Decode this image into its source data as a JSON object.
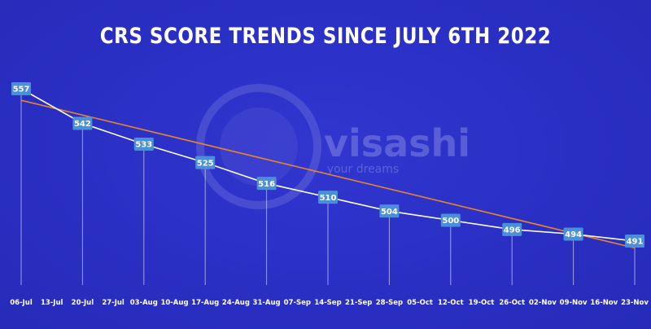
{
  "chart_data": {
    "type": "line",
    "title": "CRS SCORE TRENDS SINCE JULY 6TH 2022",
    "xlabel": "",
    "ylabel": "",
    "categories": [
      "06-Jul",
      "13-Jul",
      "20-Jul",
      "27-Jul",
      "03-Aug",
      "10-Aug",
      "17-Aug",
      "24-Aug",
      "31-Aug",
      "07-Sep",
      "14-Sep",
      "21-Sep",
      "28-Sep",
      "05-Oct",
      "12-Oct",
      "19-Oct",
      "26-Oct",
      "02-Nov",
      "09-Nov",
      "16-Nov",
      "23-Nov"
    ],
    "series": [
      {
        "values": [
          557,
          null,
          542,
          null,
          533,
          null,
          525,
          null,
          516,
          null,
          510,
          null,
          504,
          null,
          500,
          null,
          496,
          null,
          494,
          null,
          491
        ],
        "color": "#ffffff",
        "data_labels": true
      }
    ],
    "trendline": {
      "kind": "linear",
      "color": "#e8842a",
      "start": 552,
      "end": 488
    },
    "ylim": [
      455,
      575
    ],
    "grid": false,
    "legend": "none",
    "label_box_color": "#4a8fd8",
    "drop_line_color": "rgba(255,255,255,0.55)"
  },
  "watermark": {
    "brand": "visashi",
    "tagline": "... your dreams"
  }
}
